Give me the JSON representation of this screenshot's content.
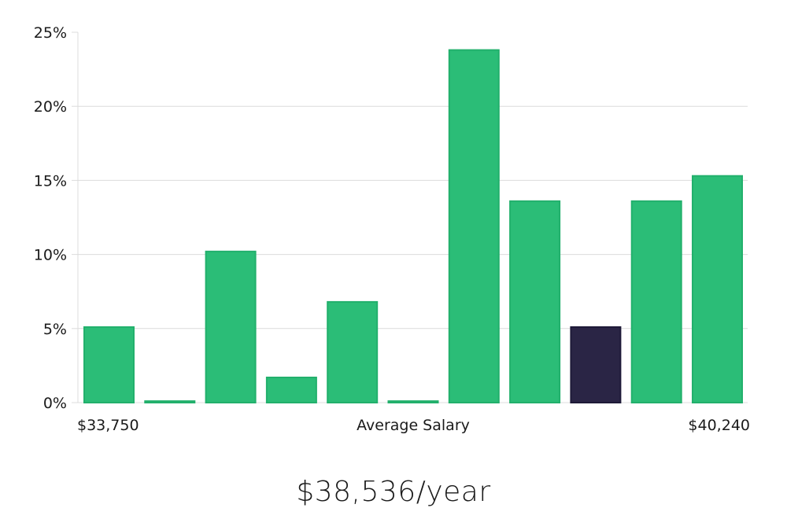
{
  "chart_data": {
    "type": "bar",
    "categories": [
      "",
      "",
      "",
      "",
      "",
      "",
      "",
      "",
      "",
      "",
      ""
    ],
    "values": [
      5.1,
      0.1,
      10.2,
      1.7,
      6.8,
      0.1,
      23.8,
      13.6,
      5.1,
      13.6,
      15.3
    ],
    "highlight_index": 8,
    "ylim": [
      0,
      25
    ],
    "yticks": [
      0,
      5,
      10,
      15,
      20,
      25
    ],
    "ytick_suffix": "%",
    "xlabel": "Average Salary",
    "x_min_label": "$33,750",
    "x_max_label": "$40,240",
    "grid": true,
    "colors": {
      "bar": "#2bbd77",
      "bar_edge": "#22b06c",
      "highlight": "#2a2545",
      "highlight_edge": "#1e1a38"
    }
  },
  "footer": {
    "salary": "$38,536/year"
  }
}
